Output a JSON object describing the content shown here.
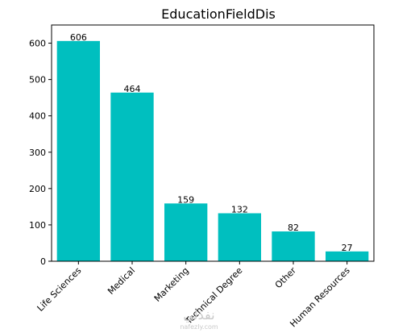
{
  "chart_data": {
    "type": "bar",
    "title": "EducationFieldDis",
    "xlabel": "",
    "ylabel": "",
    "categories": [
      "Life Sciences",
      "Medical",
      "Marketing",
      "Technical Degree",
      "Other",
      "Human Resources"
    ],
    "values": [
      606,
      464,
      159,
      132,
      82,
      27
    ],
    "data_labels": [
      "606",
      "464",
      "159",
      "132",
      "82",
      "27"
    ],
    "ylim": [
      0,
      650
    ],
    "yticks": [
      0,
      100,
      200,
      300,
      400,
      500,
      600
    ],
    "ytick_labels": [
      "0",
      "100",
      "200",
      "300",
      "400",
      "500",
      "600"
    ],
    "bar_color": "#00bfbf",
    "grid": false,
    "legend": "none"
  },
  "watermark": {
    "logo_text": "نفذلي",
    "url_text": "nafezly.com"
  }
}
